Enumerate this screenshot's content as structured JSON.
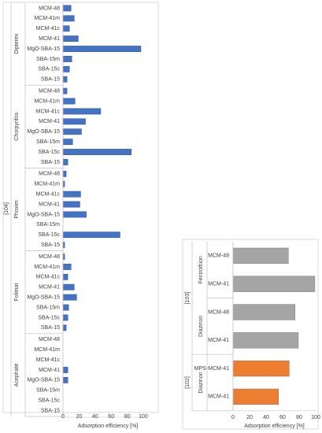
{
  "chart_data": [
    {
      "type": "bar",
      "orientation": "horizontal",
      "group_label": "[104]",
      "xlabel": "Adsorption efficiency [%]",
      "xlim": [
        0,
        100
      ],
      "xticks": [
        "0",
        "20",
        "40",
        "60",
        "80",
        "100"
      ],
      "grid": false,
      "bar_color": "#4472C4",
      "sections": [
        {
          "label": "Dipterex",
          "categories": [
            "MCM-48",
            "MCM-41m",
            "MCM-41c",
            "MCM-41",
            "MgO-SBA-15",
            "SBA-15m",
            "SBA-15c",
            "SBA-15"
          ],
          "values": [
            10,
            14,
            8,
            19,
            97,
            11,
            8,
            5
          ]
        },
        {
          "label": "Chorpyrifos",
          "categories": [
            "MCM-48",
            "MCM-41m",
            "MCM-41c",
            "MCM-41",
            "MgO-SBA-15",
            "SBA-15m",
            "SBA-15c",
            "SBA-15"
          ],
          "values": [
            5,
            15,
            47,
            28,
            23,
            12,
            85,
            6
          ]
        },
        {
          "label": "Phoxim",
          "categories": [
            "MCM-48",
            "MCM-41m",
            "MCM-41c",
            "MCM-41",
            "MgO-SBA-15",
            "SBA-15m",
            "SBA-15c",
            "SBA-15"
          ],
          "values": [
            4,
            2,
            22,
            21,
            29,
            0,
            71,
            2
          ]
        },
        {
          "label": "Folimat",
          "categories": [
            "MCM-48",
            "MCM-41m",
            "MCM-41c",
            "MCM-41",
            "MgO-SBA-15",
            "SBA-15m",
            "SBA-15c",
            "SBA-15"
          ],
          "values": [
            2,
            10,
            6,
            14,
            17,
            7,
            6,
            4
          ]
        },
        {
          "label": "Acephate",
          "categories": [
            "MCM-48",
            "MCM-41m",
            "MCM-41c",
            "MCM-41",
            "MgO-SBA-15",
            "SBA-15m",
            "SBA-15c",
            "SBA-15"
          ],
          "values": [
            0,
            0,
            0,
            6,
            6,
            0,
            0,
            0
          ]
        }
      ]
    },
    {
      "type": "bar",
      "orientation": "horizontal",
      "xlabel": "Adsorption efficiency [%]",
      "xlim": [
        0,
        100
      ],
      "xticks": [
        "0",
        "20",
        "40",
        "60",
        "80",
        "100"
      ],
      "grid": false,
      "groups": [
        {
          "label": "[103]",
          "bar_color": "#A5A5A5",
          "sections": [
            {
              "label": "Fentrothion",
              "categories": [
                "MCM-48",
                "MCM-41"
              ],
              "values": [
                67,
                99
              ]
            },
            {
              "label": "Diazinon",
              "categories": [
                "MCM-48",
                "MCM-41"
              ],
              "values": [
                75,
                79
              ]
            }
          ]
        },
        {
          "label": "[102]",
          "bar_color": "#ED7D31",
          "sections": [
            {
              "label": "Diazinon",
              "categories": [
                "MPS-MCM-41",
                "MCM-41"
              ],
              "values": [
                68,
                55
              ]
            }
          ]
        }
      ]
    }
  ]
}
